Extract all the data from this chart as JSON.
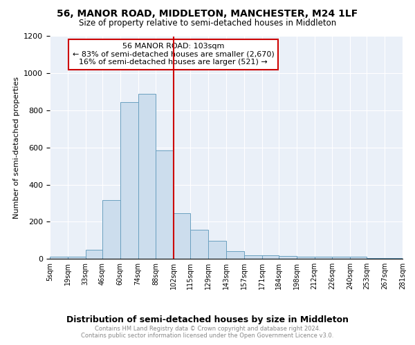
{
  "title": "56, MANOR ROAD, MIDDLETON, MANCHESTER, M24 1LF",
  "subtitle": "Size of property relative to semi-detached houses in Middleton",
  "xlabel": "Distribution of semi-detached houses by size in Middleton",
  "ylabel": "Number of semi-detached properties",
  "footer": "Contains HM Land Registry data © Crown copyright and database right 2024.\nContains public sector information licensed under the Open Government Licence v3.0.",
  "property_label": "56 MANOR ROAD: 103sqm",
  "annotation_line1": "← 83% of semi-detached houses are smaller (2,670)",
  "annotation_line2": "16% of semi-detached houses are larger (521) →",
  "bar_color": "#ccdded",
  "bar_edge_color": "#6aa0c0",
  "vline_color": "#cc0000",
  "annotation_box_edge_color": "#cc0000",
  "annotation_box_face_color": "white",
  "background_color": "#eaf0f8",
  "grid_color": "#ffffff",
  "bins": [
    5,
    19,
    33,
    46,
    60,
    74,
    88,
    102,
    115,
    129,
    143,
    157,
    171,
    184,
    198,
    212,
    226,
    240,
    253,
    267,
    281
  ],
  "counts": [
    10,
    10,
    50,
    315,
    845,
    890,
    585,
    245,
    155,
    95,
    40,
    20,
    20,
    15,
    10,
    10,
    10,
    10,
    5,
    5
  ],
  "vline_x": 102,
  "ylim": [
    0,
    1200
  ],
  "yticks": [
    0,
    200,
    400,
    600,
    800,
    1000,
    1200
  ]
}
